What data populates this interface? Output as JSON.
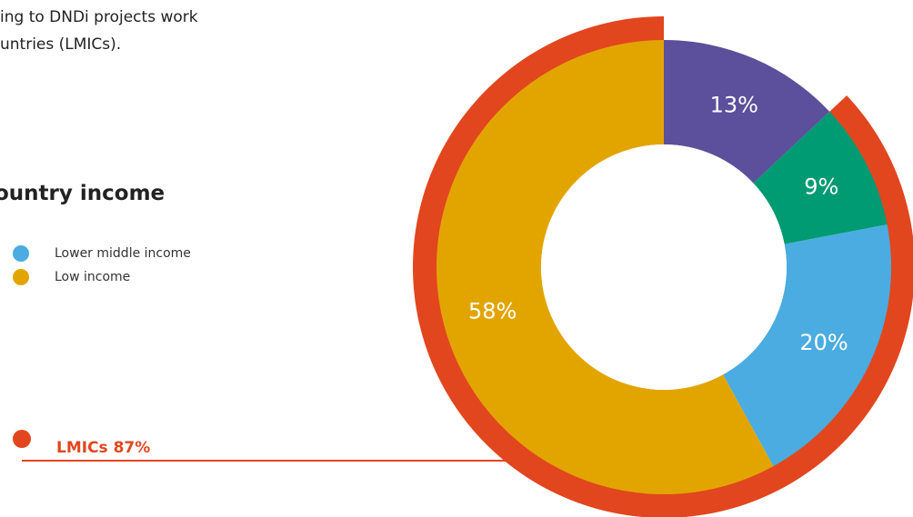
{
  "intro": {
    "line1": "ing to DNDi projects work",
    "line2": "untries (LMICs)."
  },
  "legend_title": "ountry income",
  "colors": {
    "ring": "#e2461e",
    "line": "#e2461e",
    "hole": "#ffffff"
  },
  "chart_data": {
    "type": "pie",
    "title": "",
    "slices": [
      {
        "label": "",
        "value": 13,
        "label_text": "13%",
        "color": "#5c4f9b"
      },
      {
        "label": "",
        "value": 9,
        "label_text": "9%",
        "color": "#009a73"
      },
      {
        "label": "Lower middle income",
        "value": 20,
        "label_text": "20%",
        "color": "#4aace0"
      },
      {
        "label": "Low income",
        "value": 58,
        "label_text": "58%",
        "color": "#e2a500"
      }
    ],
    "legend": [
      {
        "label": "Lower middle income",
        "color": "#4aace0"
      },
      {
        "label": "Low income",
        "color": "#e2a500"
      }
    ],
    "highlight": {
      "label": "LMICs 87%",
      "value": 87
    },
    "legend_position": "left"
  }
}
